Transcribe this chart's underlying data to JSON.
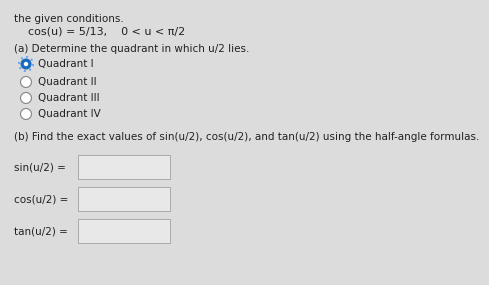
{
  "bg_color": "#dcdcdc",
  "title_line": "the given conditions.",
  "condition_line": "cos(u) = 5/13,    0 < u < π/2",
  "part_a_header": "(a) Determine the quadrant in which u/2 lies.",
  "radio_options": [
    "Quadrant I",
    "Quadrant II",
    "Quadrant III",
    "Quadrant IV"
  ],
  "selected_option": 0,
  "part_b_header": "(b) Find the exact values of sin(u/2), cos(u/2), and tan(u/2) using the half-angle formulas.",
  "input_labels": [
    "sin(u/2) =",
    "cos(u/2) =",
    "tan(u/2) ="
  ],
  "text_color": "#222222",
  "box_color": "#e8e8e8",
  "box_border": "#aaaaaa",
  "radio_selected_fill": "#1a6bbf",
  "radio_selected_ring": "#6aaaee",
  "radio_unselected_color": "#ffffff",
  "font_size": 7.5
}
